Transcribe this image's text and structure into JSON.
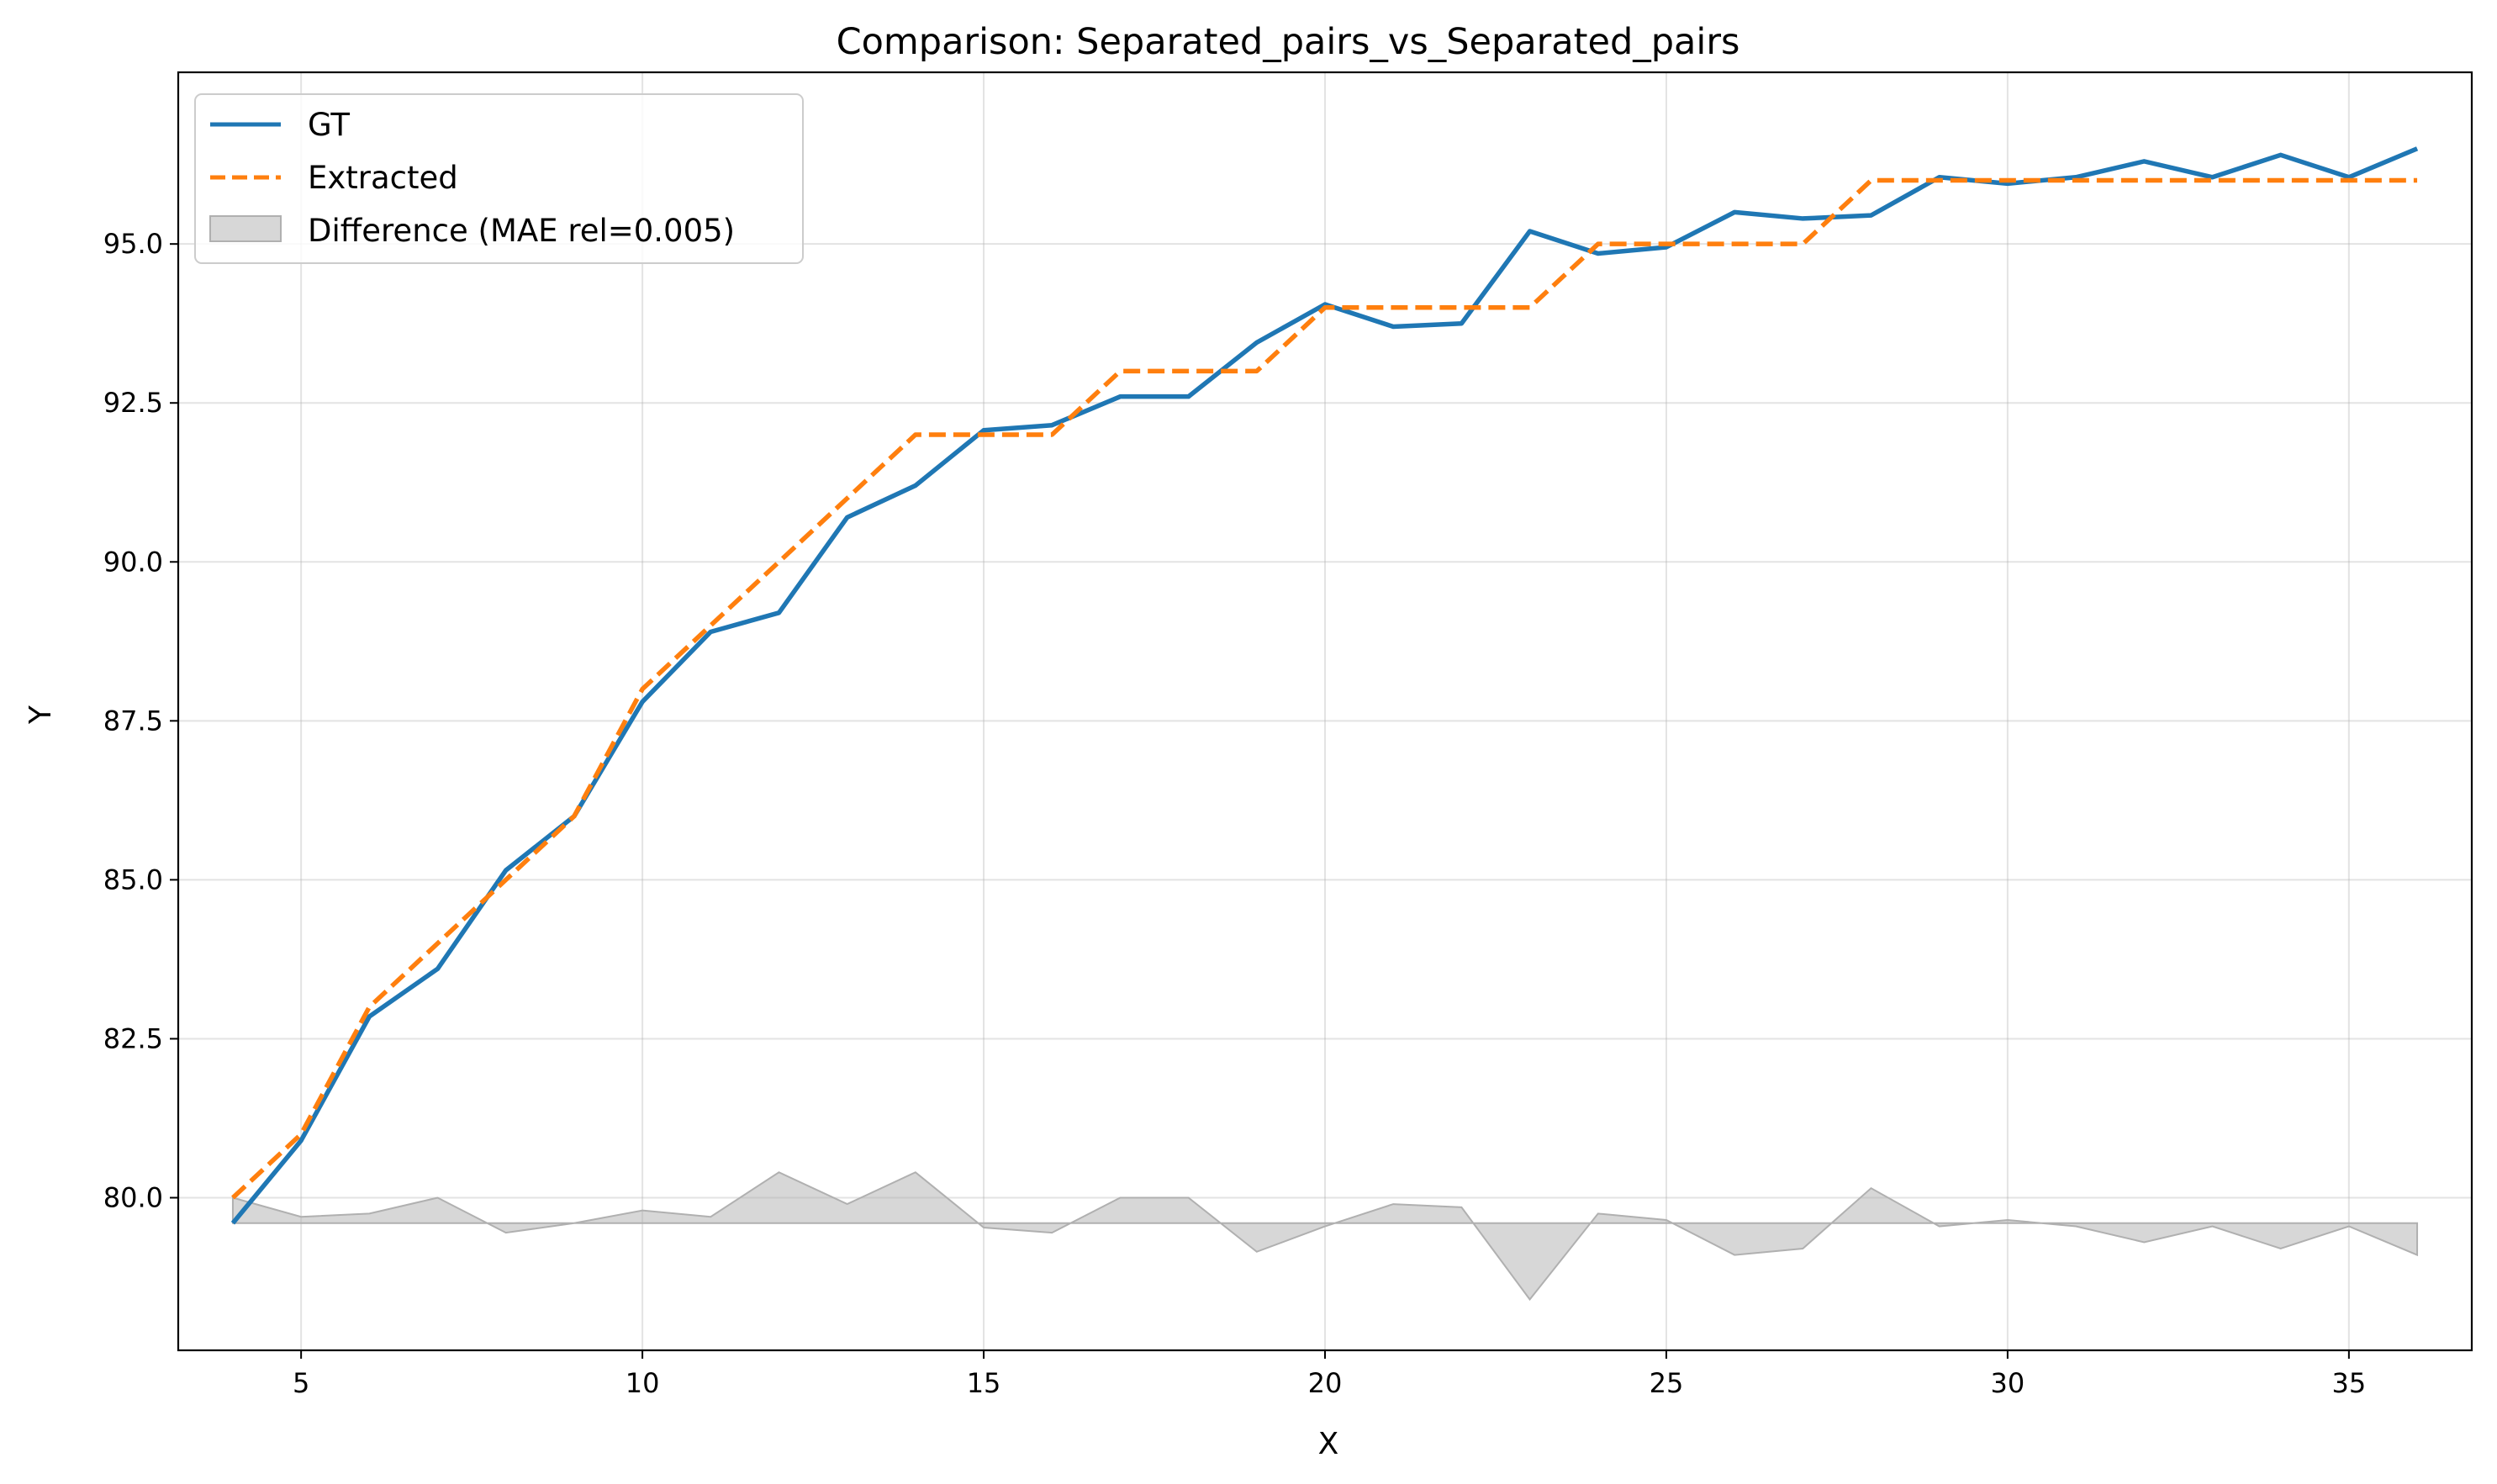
{
  "chart_data": {
    "type": "line",
    "title": "Comparison: Separated_pairs_vs_Separated_pairs",
    "xlabel": "X",
    "ylabel": "Y",
    "xlim": [
      3.2,
      36.8
    ],
    "ylim": [
      77.6,
      97.7
    ],
    "xticks": [
      5,
      10,
      15,
      20,
      25,
      30,
      35
    ],
    "yticks": [
      80.0,
      82.5,
      85.0,
      87.5,
      90.0,
      92.5,
      95.0
    ],
    "ytick_labels": [
      "80.0",
      "82.5",
      "85.0",
      "87.5",
      "90.0",
      "92.5",
      "95.0"
    ],
    "grid": true,
    "legend_position": "top-left",
    "x": [
      4,
      5,
      6,
      7,
      8,
      9,
      10,
      11,
      12,
      13,
      14,
      15,
      16,
      17,
      18,
      19,
      20,
      21,
      22,
      23,
      24,
      25,
      26,
      27,
      28,
      29,
      30,
      31,
      32,
      33,
      34,
      35,
      36
    ],
    "series": [
      {
        "name": "GT",
        "color": "#1f77b4",
        "style": "solid",
        "values": [
          79.6,
          80.9,
          82.85,
          83.6,
          85.15,
          86.0,
          87.8,
          88.9,
          89.2,
          90.7,
          91.2,
          92.07,
          92.15,
          92.6,
          92.6,
          93.45,
          94.05,
          93.7,
          93.75,
          95.2,
          94.85,
          94.95,
          95.5,
          95.4,
          95.45,
          96.05,
          95.95,
          96.05,
          96.3,
          96.05,
          96.4,
          96.05,
          96.5
        ]
      },
      {
        "name": "Extracted",
        "color": "#ff7f0e",
        "style": "dashed",
        "values": [
          80,
          81,
          83,
          84,
          85,
          86,
          88,
          89,
          90,
          91,
          92,
          92,
          92,
          93,
          93,
          93,
          94,
          94,
          94,
          94,
          95,
          95,
          95,
          95,
          96,
          96,
          96,
          96,
          96,
          96,
          96,
          96,
          96
        ]
      }
    ],
    "difference": {
      "name": "Difference (MAE rel=0.005)",
      "color": "#b0b0b0",
      "baseline": 79.6
    }
  }
}
